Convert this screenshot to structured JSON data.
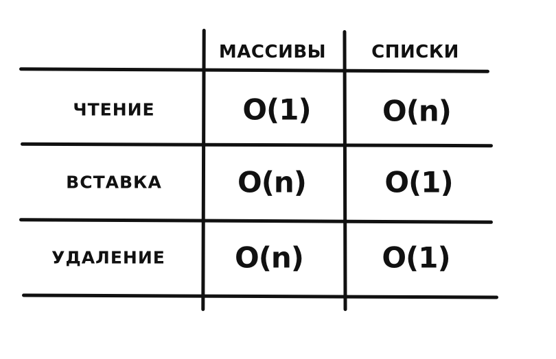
{
  "table": {
    "columns": [
      "МАССИВЫ",
      "СПИСКИ"
    ],
    "rows": [
      {
        "label": "ЧТЕНИЕ",
        "cells": [
          "O(1)",
          "O(n)"
        ]
      },
      {
        "label": "ВСТАВКА",
        "cells": [
          "O(n)",
          "O(1)"
        ]
      },
      {
        "label": "УДАЛЕНИЕ",
        "cells": [
          "O(n)",
          "O(1)"
        ]
      }
    ]
  }
}
